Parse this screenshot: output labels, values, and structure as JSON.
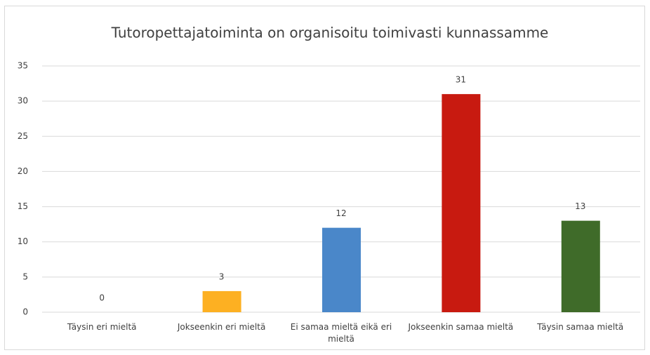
{
  "chart_data": {
    "type": "bar",
    "title": "Tutoropettajatoiminta on organisoitu toimivasti kunnassamme",
    "categories": [
      "Täysin eri mieltä",
      "Jokseenkin eri mieltä",
      "Ei samaa mieltä eikä eri mieltä",
      "Jokseenkin samaa mieltä",
      "Täysin samaa mieltä"
    ],
    "values": [
      0,
      3,
      12,
      31,
      13
    ],
    "colors": [
      "#4472c4",
      "#fdb022",
      "#4a87c9",
      "#c81a10",
      "#3f6b29"
    ],
    "ylim": [
      0,
      35
    ],
    "yticks": [
      0,
      5,
      10,
      15,
      20,
      25,
      30,
      35
    ],
    "grid": true,
    "data_labels": true
  }
}
